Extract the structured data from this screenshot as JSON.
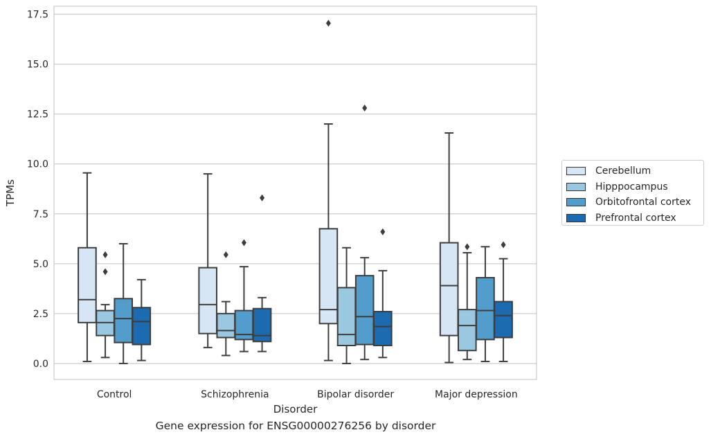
{
  "caption": "Gene expression for ENSG00000276256 by disorder",
  "chart_data": {
    "type": "box",
    "xlabel": "Disorder",
    "ylabel": "TPMs",
    "categories": [
      "Control",
      "Schizophrenia",
      "Bipolar disorder",
      "Major depression"
    ],
    "ylim": [
      -0.8,
      17.9
    ],
    "yticks": [
      0.0,
      2.5,
      5.0,
      7.5,
      10.0,
      12.5,
      15.0,
      17.5
    ],
    "ytick_labels": [
      "0.0",
      "2.5",
      "5.0",
      "7.5",
      "10.0",
      "12.5",
      "15.0",
      "17.5"
    ],
    "grid": "horizontal",
    "legend_position": "right",
    "series": [
      {
        "name": "Cerebellum",
        "color": "#d6e6f4",
        "boxes": [
          {
            "whislo": 0.1,
            "q1": 2.05,
            "med": 3.2,
            "q3": 5.8,
            "whishi": 9.55,
            "fliers": []
          },
          {
            "whislo": 0.8,
            "q1": 1.5,
            "med": 2.95,
            "q3": 4.8,
            "whishi": 9.5,
            "fliers": []
          },
          {
            "whislo": 0.15,
            "q1": 2.0,
            "med": 2.7,
            "q3": 6.75,
            "whishi": 12.0,
            "fliers": [
              17.05
            ]
          },
          {
            "whislo": 0.05,
            "q1": 1.4,
            "med": 3.9,
            "q3": 6.05,
            "whishi": 11.55,
            "fliers": []
          }
        ]
      },
      {
        "name": "Hipppocampus",
        "color": "#9ac8e0",
        "boxes": [
          {
            "whislo": 0.3,
            "q1": 1.4,
            "med": 2.05,
            "q3": 2.65,
            "whishi": 2.95,
            "fliers": [
              4.6,
              5.45
            ]
          },
          {
            "whislo": 0.4,
            "q1": 1.3,
            "med": 1.65,
            "q3": 2.5,
            "whishi": 3.1,
            "fliers": [
              5.45
            ]
          },
          {
            "whislo": 0.0,
            "q1": 0.9,
            "med": 1.45,
            "q3": 3.8,
            "whishi": 5.8,
            "fliers": []
          },
          {
            "whislo": 0.2,
            "q1": 0.65,
            "med": 1.9,
            "q3": 2.7,
            "whishi": 5.55,
            "fliers": [
              5.85
            ]
          }
        ]
      },
      {
        "name": "Orbitofrontal cortex",
        "color": "#529dcc",
        "boxes": [
          {
            "whislo": 0.0,
            "q1": 1.05,
            "med": 2.25,
            "q3": 3.25,
            "whishi": 6.0,
            "fliers": []
          },
          {
            "whislo": 0.6,
            "q1": 1.2,
            "med": 1.45,
            "q3": 2.65,
            "whishi": 4.85,
            "fliers": [
              6.05
            ]
          },
          {
            "whislo": 0.2,
            "q1": 0.95,
            "med": 2.35,
            "q3": 4.4,
            "whishi": 5.3,
            "fliers": [
              12.8
            ]
          },
          {
            "whislo": 0.1,
            "q1": 1.2,
            "med": 2.65,
            "q3": 4.3,
            "whishi": 5.85,
            "fliers": []
          }
        ]
      },
      {
        "name": "Prefrontal cortex",
        "color": "#1c6aaf",
        "boxes": [
          {
            "whislo": 0.15,
            "q1": 0.95,
            "med": 2.1,
            "q3": 2.8,
            "whishi": 4.2,
            "fliers": []
          },
          {
            "whislo": 0.6,
            "q1": 1.1,
            "med": 1.4,
            "q3": 2.75,
            "whishi": 3.3,
            "fliers": [
              8.3
            ]
          },
          {
            "whislo": 0.3,
            "q1": 0.9,
            "med": 1.85,
            "q3": 2.6,
            "whishi": 4.65,
            "fliers": [
              6.6
            ]
          },
          {
            "whislo": 0.1,
            "q1": 1.3,
            "med": 2.4,
            "q3": 3.1,
            "whishi": 5.25,
            "fliers": [
              5.95
            ]
          }
        ]
      }
    ]
  }
}
